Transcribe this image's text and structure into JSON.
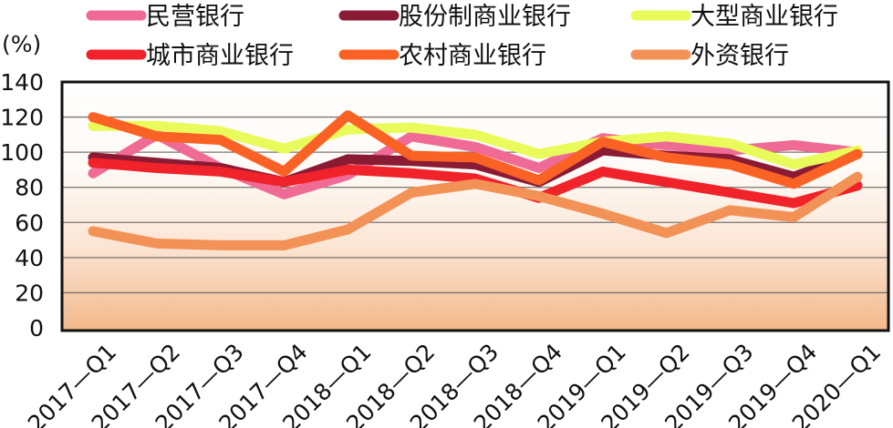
{
  "chart_data": {
    "type": "line",
    "title": "",
    "ylabel": "(%)",
    "xlabel": "",
    "ylim": [
      0,
      140
    ],
    "yticks": [
      0,
      20,
      40,
      60,
      80,
      100,
      120,
      140
    ],
    "grid": true,
    "legend_position": "top",
    "categories": [
      "2017—Q1",
      "2017—Q2",
      "2017—Q3",
      "2017—Q4",
      "2018—Q1",
      "2018—Q2",
      "2018—Q3",
      "2018—Q4",
      "2019—Q1",
      "2019—Q2",
      "2019—Q3",
      "2019—Q4",
      "2020—Q1"
    ],
    "series": [
      {
        "name": "民营银行",
        "color": "#f06a96",
        "values": [
          88,
          110,
          91,
          76,
          87,
          109,
          103,
          91,
          108,
          104,
          101,
          104,
          100
        ]
      },
      {
        "name": "股份制商业银行",
        "color": "#8b1a35",
        "values": [
          97,
          94,
          91,
          83,
          96,
          95,
          93,
          83,
          101,
          98,
          96,
          86,
          99
        ]
      },
      {
        "name": "大型商业银行",
        "color": "#e9fb5a",
        "values": [
          115,
          115,
          112,
          102,
          113,
          114,
          110,
          99,
          106,
          109,
          105,
          93,
          101
        ]
      },
      {
        "name": "城市商业银行",
        "color": "#f0222a",
        "values": [
          94,
          91,
          89,
          83,
          90,
          88,
          85,
          74,
          89,
          83,
          77,
          71,
          81
        ]
      },
      {
        "name": "农村商业银行",
        "color": "#fa6225",
        "values": [
          120,
          109,
          107,
          89,
          121,
          98,
          97,
          84,
          106,
          97,
          93,
          82,
          99
        ]
      },
      {
        "name": "外资银行",
        "color": "#f39257",
        "values": [
          55,
          48,
          47,
          47,
          56,
          77,
          82,
          75,
          65,
          54,
          67,
          63,
          86
        ]
      }
    ]
  },
  "legend": {
    "items": [
      {
        "label": "民营银行",
        "color": "#f06a96"
      },
      {
        "label": "股份制商业银行",
        "color": "#8b1a35"
      },
      {
        "label": "大型商业银行",
        "color": "#e9fb5a"
      },
      {
        "label": "城市商业银行",
        "color": "#f0222a"
      },
      {
        "label": "农村商业银行",
        "color": "#fa6225"
      },
      {
        "label": "外资银行",
        "color": "#f39257"
      }
    ]
  },
  "axis": {
    "unit_label": "(%)",
    "gradient_top": "#ffffff",
    "gradient_bottom": "#f2b88a"
  }
}
